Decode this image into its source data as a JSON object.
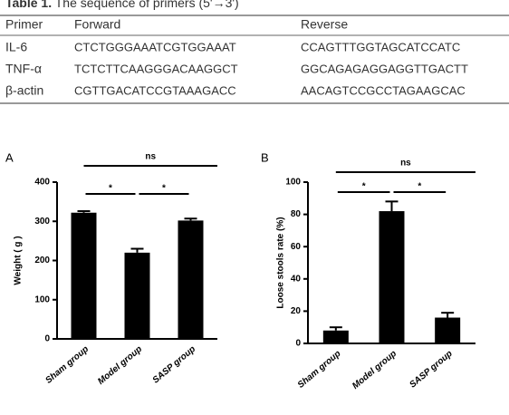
{
  "table": {
    "caption_label": "Table 1.",
    "caption": "The sequence of primers (5'→3')",
    "header": [
      "Primer",
      "Forward",
      "Reverse"
    ],
    "rows": [
      [
        "IL-6",
        "CTCTGGGAAATCGTGGAAAT",
        "CCAGTTTGGTAGCATCCATC"
      ],
      [
        "TNF-α",
        "TCTCTTCAAGGGACAAGGCT",
        "GGCAGAGAGGAGGTTGACTT"
      ],
      [
        "β-actin",
        "CGTTGACATCCGTAAAGACC",
        "AACAGTCCGCCTAGAAGCAC"
      ]
    ]
  },
  "chart_data": [
    {
      "type": "bar",
      "panel": "A",
      "y_label": "Weight ( g )",
      "categories": [
        "Sham group",
        "Model group",
        "SASP group"
      ],
      "values": [
        322,
        220,
        302
      ],
      "errors": [
        4,
        10,
        5
      ],
      "color": "#000000",
      "ylim": [
        0,
        400
      ],
      "yticks": [
        0,
        100,
        200,
        300,
        400
      ],
      "annotations": [
        {
          "text": "ns",
          "from": 0,
          "to": 2
        },
        {
          "text": "*",
          "from": 0,
          "to": 1
        },
        {
          "text": "*",
          "from": 1,
          "to": 2
        }
      ]
    },
    {
      "type": "bar",
      "panel": "B",
      "y_label": "Loose stools rate  (%)",
      "categories": [
        "Sham group",
        "Model group",
        "SASP group"
      ],
      "values": [
        8,
        82,
        16
      ],
      "errors": [
        2,
        6,
        3
      ],
      "color": "#000000",
      "ylim": [
        0,
        100
      ],
      "yticks": [
        0,
        20,
        40,
        60,
        80,
        100
      ],
      "annotations": [
        {
          "text": "ns",
          "from": 0,
          "to": 2
        },
        {
          "text": "*",
          "from": 0,
          "to": 1
        },
        {
          "text": "*",
          "from": 1,
          "to": 2
        }
      ]
    }
  ]
}
